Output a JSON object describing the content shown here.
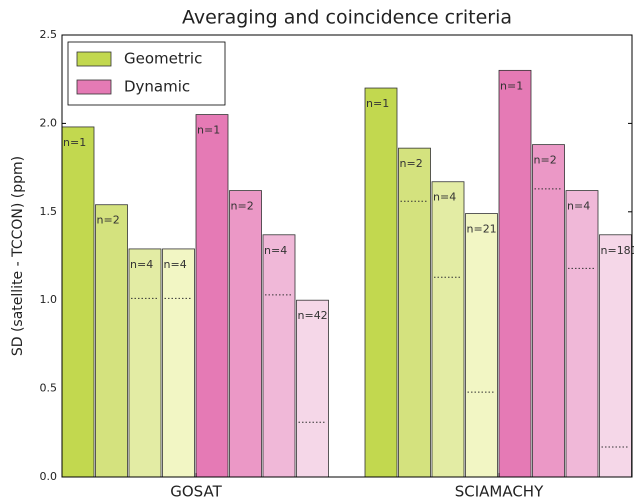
{
  "chart_data": {
    "type": "bar",
    "title": "Averaging and coincidence criteria",
    "y_label": "SD (satellite - TCCON) (ppm)",
    "categories": [
      "GOSAT",
      "SCIAMACHY"
    ],
    "ylim": [
      0,
      2.5
    ],
    "yticks": [
      {
        "value": 0,
        "label": "0.0"
      },
      0.5,
      {
        "value": 1,
        "label": "1.0"
      },
      1.5,
      {
        "value": 2,
        "label": "2.0"
      },
      2.5
    ],
    "legend": "upper left",
    "series": [
      {
        "name": "Geometric",
        "color": "#c2d84f",
        "colors": [
          "#c2d84f",
          "#d4e27e",
          "#e3eca4",
          "#f2f6c4"
        ],
        "values": [
          [
            1.98,
            1.54,
            1.29,
            1.29
          ],
          [
            2.2,
            1.86,
            1.67,
            1.49
          ]
        ],
        "value_labels": [
          [
            "n=1",
            "n=2",
            "n=4",
            "n=4"
          ],
          [
            "n=1",
            "n=2",
            "n=4",
            "n=21"
          ]
        ],
        "reference": [
          [
            null,
            null,
            1.01,
            1.01
          ],
          [
            null,
            1.56,
            1.13,
            0.48
          ]
        ]
      },
      {
        "name": "Dynamic",
        "color": "#e57ab5",
        "colors": [
          "#e57ab5",
          "#eb98c6",
          "#f0b8d8",
          "#f5d7e8"
        ],
        "values": [
          [
            2.05,
            1.62,
            1.37,
            1.0
          ],
          [
            2.3,
            1.88,
            1.62,
            1.37
          ]
        ],
        "value_labels": [
          [
            "n=1",
            "n=2",
            "n=4",
            "n=42"
          ],
          [
            "n=1",
            "n=2",
            "n=4",
            "n=181"
          ]
        ],
        "reference": [
          [
            null,
            null,
            1.03,
            0.31
          ],
          [
            null,
            1.63,
            1.18,
            0.17
          ]
        ]
      }
    ]
  }
}
